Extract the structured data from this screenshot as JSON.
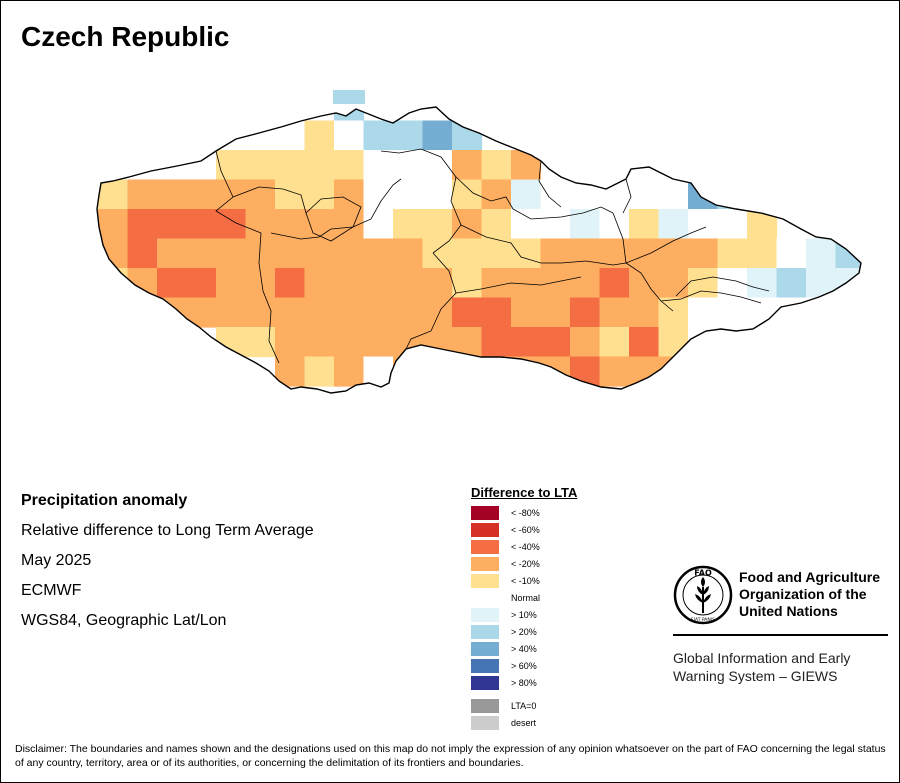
{
  "title": "Czech Republic",
  "map_info": {
    "heading": "Precipitation anomaly",
    "subtitle": "Relative difference to Long Term Average",
    "period": "May 2025",
    "source": "ECMWF",
    "projection": "WGS84, Geographic Lat/Lon"
  },
  "legend": {
    "title": "Difference to LTA",
    "items": [
      {
        "label": "< -80%",
        "color": "#a50026"
      },
      {
        "label": "< -60%",
        "color": "#d73027"
      },
      {
        "label": "< -40%",
        "color": "#f46d43"
      },
      {
        "label": "< -20%",
        "color": "#fdae61"
      },
      {
        "label": "< -10%",
        "color": "#fee090"
      },
      {
        "label": "Normal",
        "color": "#ffffff"
      },
      {
        "label": "> 10%",
        "color": "#e0f3f8"
      },
      {
        "label": "> 20%",
        "color": "#abd9e9"
      },
      {
        "label": "> 40%",
        "color": "#74add1"
      },
      {
        "label": "> 60%",
        "color": "#4575b4"
      },
      {
        "label": "> 80%",
        "color": "#313695"
      }
    ],
    "extra": [
      {
        "label": "LTA=0",
        "color": "#999999"
      },
      {
        "label": "desert",
        "color": "#cccccc"
      }
    ]
  },
  "fao": {
    "name_lines": [
      "Food and Agriculture",
      "Organization of the",
      "United Nations"
    ],
    "giews_lines": [
      "Global Information and Early",
      "Warning System – GIEWS"
    ],
    "seal_top": "FAO",
    "seal_bottom": "FIAT PANIS"
  },
  "disclaimer": "Disclaimer: The boundaries and names shown and the designations used on this map do not imply the expression of any opinion whatsoever on the part of FAO concerning the legal status of any country, territory, area or of its authorities, or concerning the delimitation of its frontiers and boundaries."
}
